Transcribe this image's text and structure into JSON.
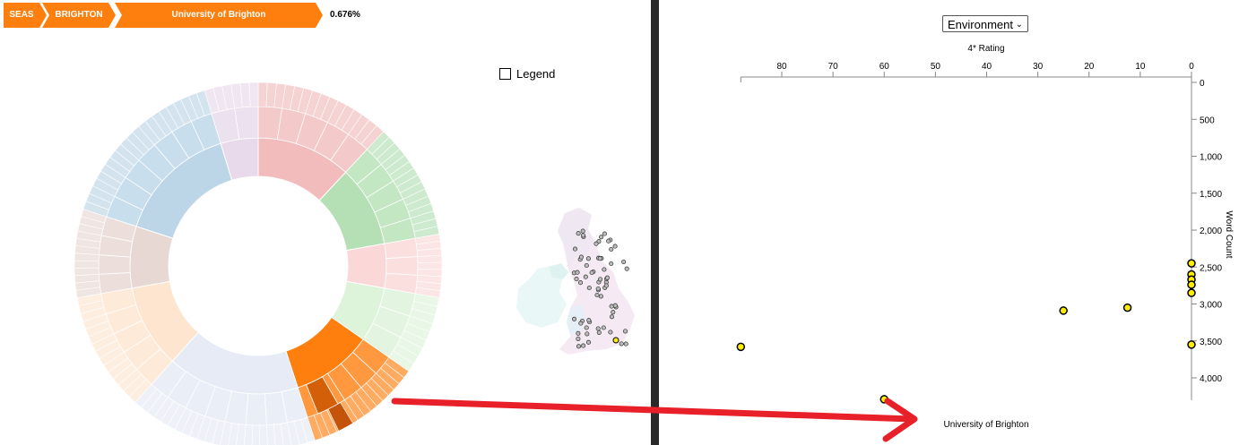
{
  "breadcrumb": {
    "items": [
      "SEAS",
      "BRIGHTON",
      "University of Brighton"
    ],
    "percentage": "0.676%"
  },
  "legend": {
    "label": "Legend",
    "checked": false
  },
  "panel_select": {
    "value": "Environment"
  },
  "scatter": {
    "x_axis": {
      "label": "4* Rating",
      "ticks": [
        "80",
        "70",
        "60",
        "50",
        "40",
        "30",
        "20",
        "10",
        "0"
      ]
    },
    "y_axis": {
      "label": "Word Count",
      "ticks": [
        "0",
        "500",
        "1,000",
        "1,500",
        "2,000",
        "2,500",
        "3,000",
        "3,500",
        "4,000"
      ]
    },
    "highlight_label": "University of Brighton",
    "points": [
      {
        "x": 88,
        "y": 3580
      },
      {
        "x": 60,
        "y": 4290
      },
      {
        "x": 25,
        "y": 3090
      },
      {
        "x": 12.5,
        "y": 3050
      },
      {
        "x": 0,
        "y": 2450
      },
      {
        "x": 0,
        "y": 2600
      },
      {
        "x": 0,
        "y": 2670
      },
      {
        "x": 0,
        "y": 2740
      },
      {
        "x": 0,
        "y": 2850
      },
      {
        "x": 0,
        "y": 3550
      }
    ]
  },
  "colors": {
    "accent": "#ff7f0e",
    "point_fill": "#ffee00",
    "arrow": "#e8202a"
  }
}
